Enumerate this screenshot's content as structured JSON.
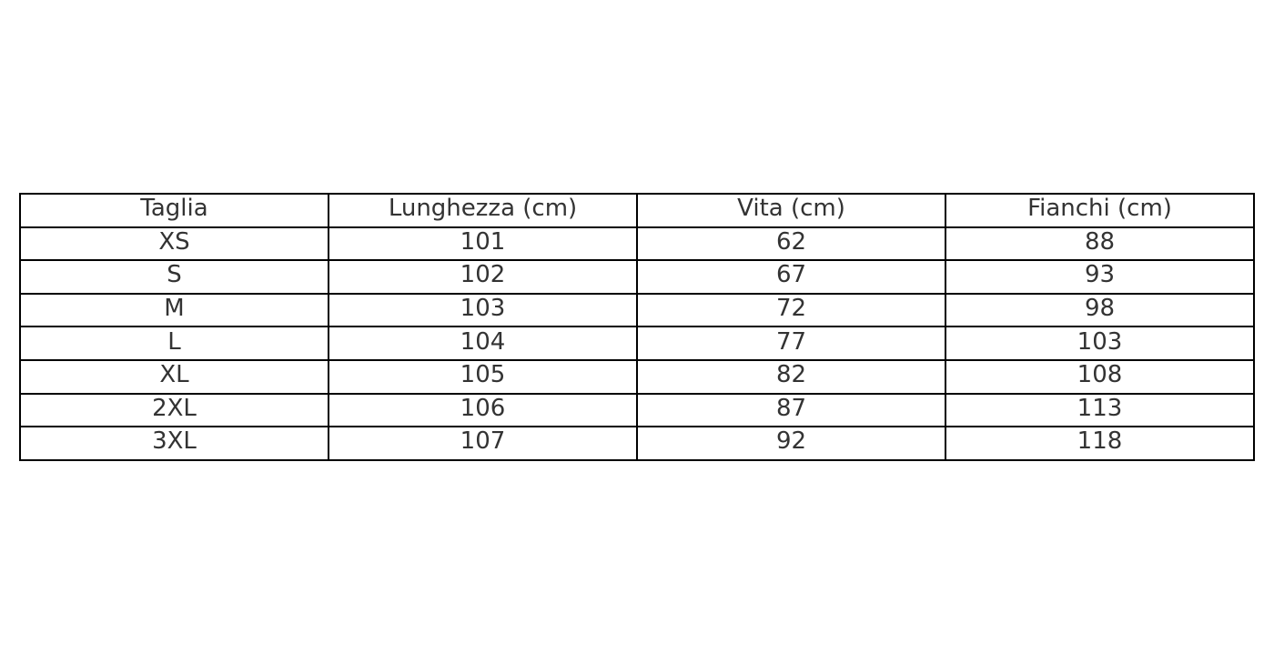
{
  "table": {
    "headers": [
      "Taglia",
      "Lunghezza (cm)",
      "Vita (cm)",
      "Fianchi (cm)"
    ],
    "rows": [
      [
        "XS",
        "101",
        "62",
        "88"
      ],
      [
        "S",
        "102",
        "67",
        "93"
      ],
      [
        "M",
        "103",
        "72",
        "98"
      ],
      [
        "L",
        "104",
        "77",
        "103"
      ],
      [
        "XL",
        "105",
        "82",
        "108"
      ],
      [
        "2XL",
        "106",
        "87",
        "113"
      ],
      [
        "3XL",
        "107",
        "92",
        "118"
      ]
    ]
  }
}
